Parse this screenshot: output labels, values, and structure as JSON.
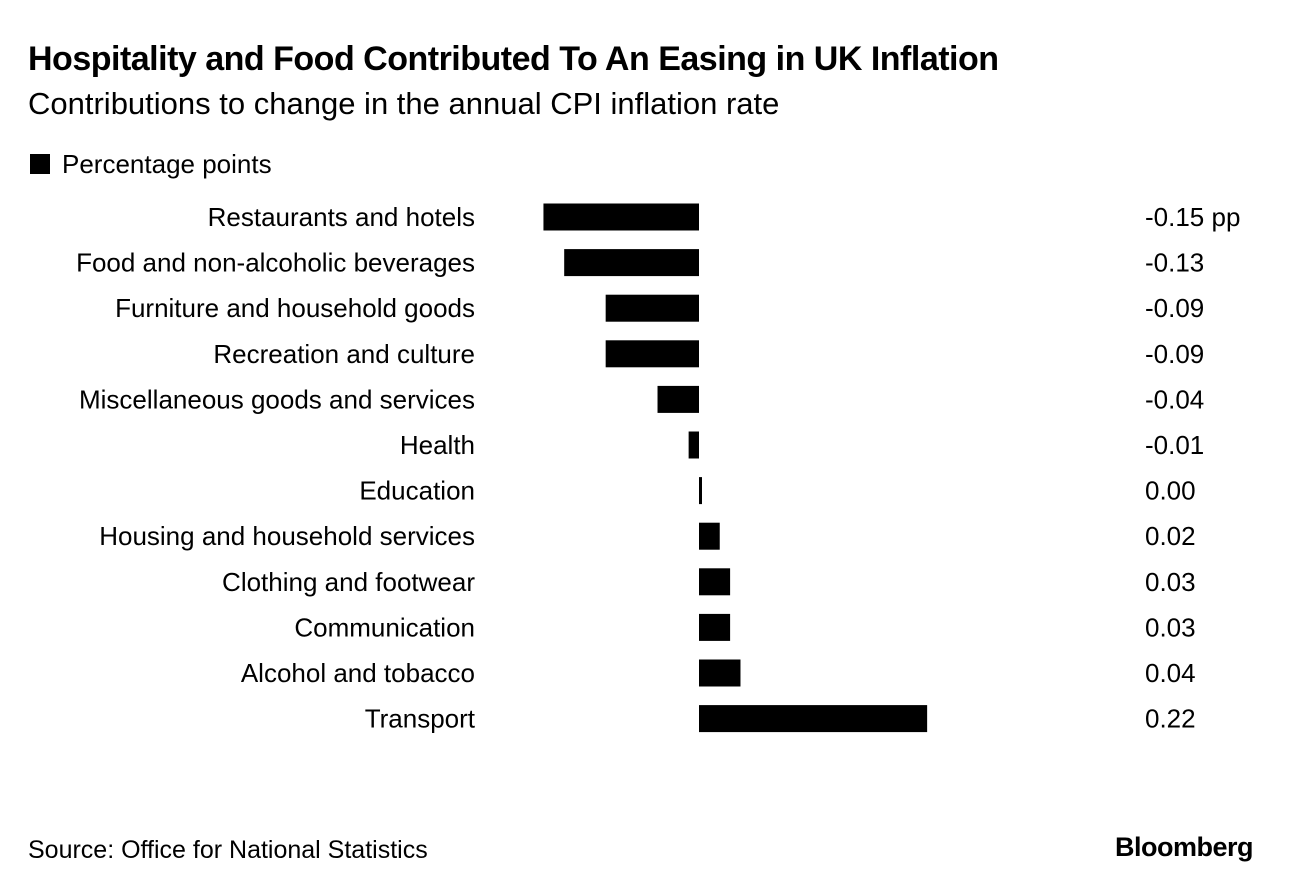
{
  "chart_data": {
    "type": "bar",
    "orientation": "horizontal",
    "title": "Hospitality and Food Contributed To An Easing in UK Inflation",
    "subtitle": "Contributions to change in the annual CPI inflation rate",
    "legend": "Percentage points",
    "unit_suffix": " pp",
    "categories": [
      "Restaurants and hotels",
      "Food and non-alcoholic beverages",
      "Furniture and household goods",
      "Recreation and culture",
      "Miscellaneous goods and services",
      "Health",
      "Education",
      "Housing and household services",
      "Clothing and footwear",
      "Communication",
      "Alcohol and tobacco",
      "Transport"
    ],
    "values": [
      -0.15,
      -0.13,
      -0.09,
      -0.09,
      -0.04,
      -0.01,
      0.0,
      0.02,
      0.03,
      0.03,
      0.04,
      0.22
    ],
    "value_labels": [
      "-0.15",
      "-0.13",
      "-0.09",
      "-0.09",
      "-0.04",
      "-0.01",
      "0.00",
      "0.02",
      "0.03",
      "0.03",
      "0.04",
      "0.22"
    ],
    "xlim": [
      -0.15,
      0.22
    ],
    "bar_color": "#000000"
  },
  "footer": {
    "source": "Source: Office for National Statistics",
    "brand": "Bloomberg"
  }
}
